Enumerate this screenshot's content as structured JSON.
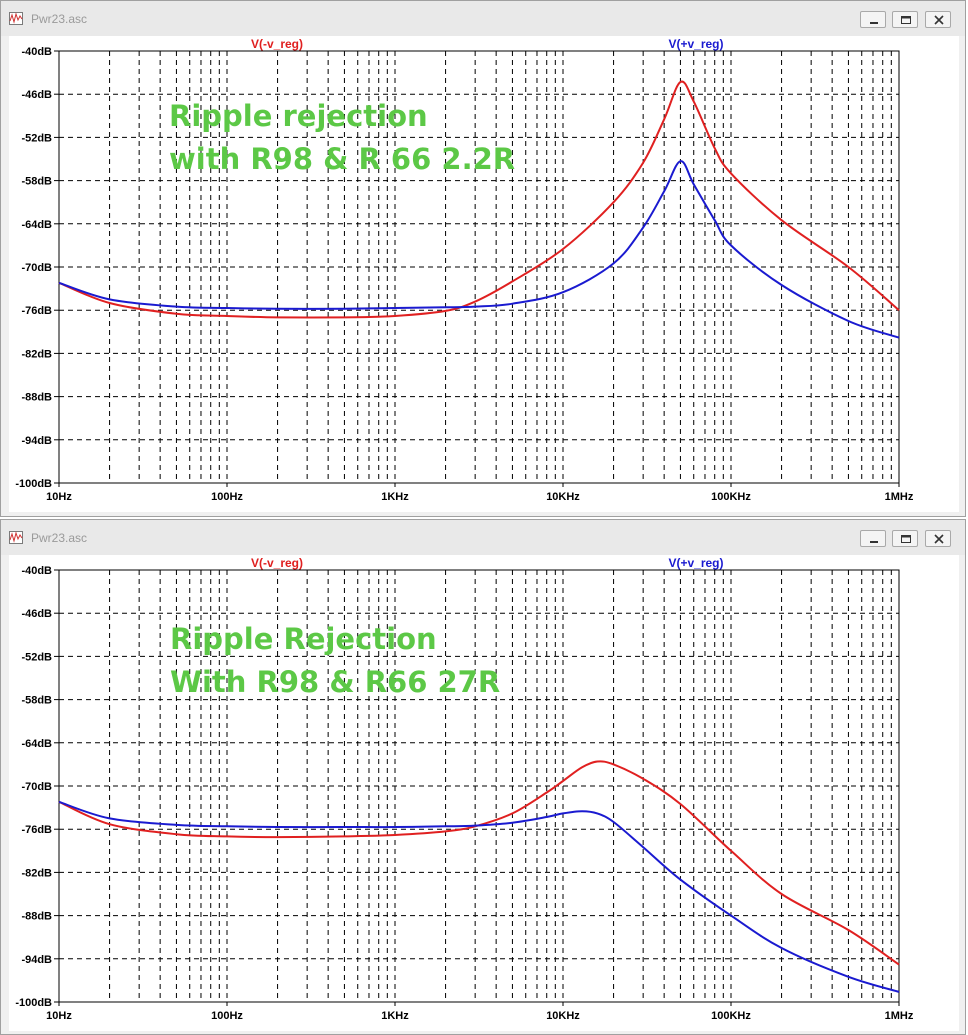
{
  "windows": [
    {
      "title": "Pwr23.asc",
      "chart_data": {
        "type": "line",
        "xscale": "log",
        "xlim": [
          10,
          1000000
        ],
        "ylim": [
          -100,
          -40
        ],
        "grid": true,
        "x_tick_labels": [
          "10Hz",
          "100Hz",
          "1KHz",
          "10KHz",
          "100KHz",
          "1MHz"
        ],
        "y_tick_labels": [
          "-40dB",
          "-46dB",
          "-52dB",
          "-58dB",
          "-64dB",
          "-70dB",
          "-76dB",
          "-82dB",
          "-88dB",
          "-94dB",
          "-100dB"
        ],
        "annotation": [
          "Ripple rejection",
          "with R98 & R 66 2.2R"
        ],
        "series": [
          {
            "name": "V(-v_reg)",
            "color": "#e02020",
            "x": [
              10,
              20,
              50,
              100,
              200,
              500,
              1000,
              2000,
              3000,
              5000,
              10000,
              20000,
              30000,
              40000,
              50000,
              60000,
              80000,
              100000,
              200000,
              500000,
              1000000
            ],
            "y": [
              -72.2,
              -75.0,
              -76.5,
              -76.8,
              -77.0,
              -77.0,
              -76.8,
              -76.1,
              -74.8,
              -72.0,
              -67.5,
              -61.0,
              -55.5,
              -49.5,
              -44.3,
              -47.0,
              -53.5,
              -57.0,
              -63.5,
              -70.0,
              -76.0
            ]
          },
          {
            "name": "V(+v_reg)",
            "color": "#1a1ad0",
            "x": [
              10,
              20,
              50,
              100,
              200,
              500,
              1000,
              2000,
              3000,
              5000,
              10000,
              20000,
              30000,
              40000,
              50000,
              60000,
              80000,
              100000,
              200000,
              500000,
              1000000
            ],
            "y": [
              -72.2,
              -74.5,
              -75.5,
              -75.7,
              -75.8,
              -75.8,
              -75.7,
              -75.6,
              -75.5,
              -75.1,
              -73.5,
              -69.5,
              -64.5,
              -59.5,
              -55.3,
              -58.5,
              -63.5,
              -67.0,
              -72.5,
              -77.5,
              -79.8
            ]
          }
        ]
      }
    },
    {
      "title": "Pwr23.asc",
      "chart_data": {
        "type": "line",
        "xscale": "log",
        "xlim": [
          10,
          1000000
        ],
        "ylim": [
          -100,
          -40
        ],
        "grid": true,
        "x_tick_labels": [
          "10Hz",
          "100Hz",
          "1KHz",
          "10KHz",
          "100KHz",
          "1MHz"
        ],
        "y_tick_labels": [
          "-40dB",
          "-46dB",
          "-52dB",
          "-58dB",
          "-64dB",
          "-70dB",
          "-76dB",
          "-82dB",
          "-88dB",
          "-94dB",
          "-100dB"
        ],
        "annotation": [
          "Ripple Rejection",
          "With R98 & R66 27R"
        ],
        "series": [
          {
            "name": "V(-v_reg)",
            "color": "#e02020",
            "x": [
              10,
              20,
              50,
              100,
              200,
              500,
              1000,
              2000,
              3000,
              5000,
              8000,
              10000,
              13000,
              16000,
              20000,
              30000,
              50000,
              100000,
              200000,
              500000,
              1000000
            ],
            "y": [
              -72.2,
              -75.3,
              -76.7,
              -77.0,
              -77.1,
              -77.0,
              -76.8,
              -76.3,
              -75.6,
              -73.8,
              -70.9,
              -69.3,
              -67.4,
              -66.6,
              -67.0,
              -69.0,
              -72.5,
              -79.0,
              -85.0,
              -90.0,
              -94.8
            ]
          },
          {
            "name": "V(+v_reg)",
            "color": "#1a1ad0",
            "x": [
              10,
              20,
              50,
              100,
              200,
              500,
              1000,
              2000,
              3000,
              5000,
              8000,
              10000,
              13000,
              16000,
              20000,
              30000,
              50000,
              100000,
              200000,
              500000,
              1000000
            ],
            "y": [
              -72.2,
              -74.5,
              -75.4,
              -75.6,
              -75.7,
              -75.7,
              -75.7,
              -75.6,
              -75.5,
              -75.1,
              -74.3,
              -73.8,
              -73.5,
              -73.8,
              -75.0,
              -78.5,
              -83.0,
              -88.0,
              -92.5,
              -96.5,
              -98.6
            ]
          }
        ]
      }
    }
  ]
}
